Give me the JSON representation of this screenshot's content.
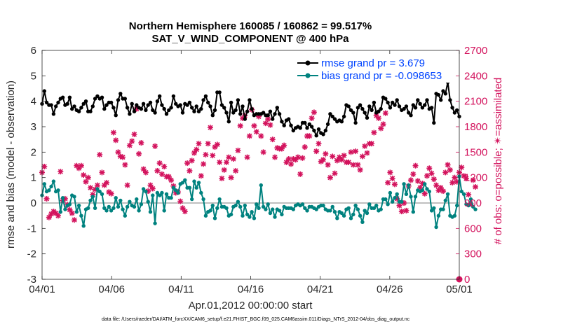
{
  "chart_data": {
    "type": "line",
    "title": "Northern Hemisphere 160085 / 160862 = 99.517%",
    "subtitle": "SAT_V_WIND_COMPONENT @ 400 hPa",
    "xlabel": "Apr.01,2012 00:00:00 start",
    "ylabel": "rmse and bias (model - observation)",
    "y2label": "# of obs: o=possible; ✴=assimilated",
    "footnote": "data file: /Users/raeder/DAI/ATM_forcXX/CAM6_setup/f.e21.FHIST_BGC.f09_025.CAM6assim.011/Diags_NTrS_2012-04/obs_diag_output.nc",
    "xlim": [
      0,
      30
    ],
    "ylim": [
      -3,
      6
    ],
    "y2lim": [
      0,
      2700
    ],
    "x_ticks": [
      0,
      5,
      10,
      15,
      20,
      25,
      30
    ],
    "x_tick_labels": [
      "04/01",
      "04/06",
      "04/11",
      "04/16",
      "04/21",
      "04/26",
      "05/01"
    ],
    "y_ticks": [
      -3,
      -2,
      -1,
      0,
      1,
      2,
      3,
      4,
      5,
      6
    ],
    "y2_ticks": [
      0,
      300,
      600,
      900,
      1200,
      1500,
      1800,
      2100,
      2400,
      2700
    ],
    "colors": {
      "rmse": "#000000",
      "bias": "#00827f",
      "obs": "#d3135d",
      "zero_line": "#bfbfbf",
      "legend_text": "#0044ff"
    },
    "legend": [
      {
        "name": "rmse grand pr = 3.679",
        "series": "rmse"
      },
      {
        "name": "bias grand pr = -0.098653",
        "series": "bias"
      }
    ],
    "legend_location": "top-right",
    "series": [
      {
        "name": "rmse",
        "values": [
          3.9,
          4.4,
          3.95,
          3.85,
          3.85,
          3.5,
          3.8,
          3.95,
          4.1,
          4.15,
          3.85,
          3.9,
          4.15,
          3.7,
          3.8,
          3.65,
          3.6,
          3.75,
          3.9,
          4.0,
          3.6,
          3.6,
          3.8,
          4.1,
          4.2,
          4.1,
          4.15,
          3.7,
          3.85,
          3.95,
          3.95,
          3.75,
          3.45,
          4.05,
          4.3,
          4.1,
          4.1,
          3.75,
          3.5,
          3.9,
          3.6,
          3.85,
          3.75,
          3.7,
          3.9,
          3.65,
          3.85,
          3.95,
          3.65,
          3.55,
          4.0,
          4.2,
          3.85,
          3.7,
          3.5,
          3.65,
          3.75,
          4.2,
          3.9,
          3.8,
          3.85,
          3.55,
          3.9,
          3.85,
          3.95,
          3.75,
          3.6,
          3.8,
          3.6,
          3.7,
          4.05,
          4.2,
          3.95,
          3.8,
          3.45,
          3.65,
          4.35,
          4.35,
          3.85,
          3.75,
          3.55,
          3.2,
          3.95,
          3.55,
          3.65,
          4.05,
          3.5,
          3.8,
          3.3,
          3.6,
          4.05,
          3.7,
          3.45,
          3.5,
          3.5,
          3.5,
          3.55,
          3.45,
          3.45,
          3.6,
          3.3,
          3.5,
          3.75,
          3.5,
          3.2,
          3.05,
          3.25,
          3.3,
          3.05,
          2.85,
          2.95,
          3.0,
          2.95,
          3.15,
          3.15,
          2.95,
          3.1,
          3.0,
          2.85,
          2.65,
          2.9,
          2.75,
          2.7,
          2.85,
          3.1,
          3.5,
          3.4,
          3.3,
          3.2,
          3.25,
          3.2,
          3.4,
          3.85,
          3.8,
          3.65,
          3.55,
          3.15,
          3.75,
          3.85,
          3.7,
          3.55,
          3.35,
          3.8,
          3.65,
          3.95,
          3.55,
          3.6,
          3.7,
          4.15,
          4.1,
          3.95,
          3.75,
          3.95,
          3.85,
          4.05,
          3.8,
          3.65,
          3.7,
          3.8,
          3.55,
          3.45,
          3.85,
          3.75,
          4.05,
          3.9,
          3.75,
          3.85,
          4.05,
          3.7,
          3.75,
          3.15,
          4.3,
          4.25,
          4.05,
          4.4,
          4.3,
          4.75,
          4.05,
          3.75,
          3.55,
          3.65,
          3.4
        ]
      },
      {
        "name": "bias",
        "values": [
          0.3,
          0.75,
          0.45,
          0.5,
          0.65,
          0.85,
          0.45,
          0.5,
          -0.35,
          0.2,
          -0.25,
          -0.1,
          -0.05,
          0.3,
          0.25,
          -0.35,
          -0.1,
          -0.5,
          -0.9,
          -0.25,
          -0.2,
          0.1,
          0.25,
          -0.2,
          0.55,
          0.45,
          0.35,
          -0.2,
          -0.3,
          -0.15,
          -0.3,
          -0.2,
          0.2,
          -0.15,
          0.1,
          -0.25,
          -0.5,
          -0.15,
          0.05,
          -0.1,
          -0.15,
          0.15,
          -0.3,
          -0.05,
          0.55,
          0.45,
          0.05,
          -0.35,
          0.3,
          -0.8,
          0.4,
          0.3,
          0.4,
          -0.3,
          0.35,
          0.2,
          0.2,
          0.6,
          0.5,
          0.4,
          0.75,
          0.8,
          0.9,
          0.6,
          0.6,
          0.15,
          0.85,
          0.6,
          0.8,
          0.4,
          0.15,
          -0.5,
          -0.35,
          -0.3,
          -0.1,
          -0.6,
          -0.2,
          0.15,
          -0.15,
          -0.15,
          -0.2,
          -0.5,
          -0.45,
          -0.15,
          -0.1,
          0.05,
          -0.15,
          -0.5,
          -0.1,
          -0.45,
          -0.55,
          -0.35,
          -0.6,
          -0.05,
          -0.2,
          0.7,
          -0.15,
          -0.25,
          -0.05,
          -0.4,
          -0.25,
          -0.55,
          -0.25,
          -0.3,
          -0.45,
          -0.15,
          -0.2,
          -0.2,
          -0.2,
          -0.25,
          -0.1,
          -0.05,
          -0.1,
          -0.05,
          -0.2,
          -0.3,
          -0.15,
          -0.15,
          -0.2,
          -0.25,
          -0.15,
          -0.1,
          -0.1,
          -0.25,
          -0.3,
          -0.3,
          -0.15,
          -0.35,
          -0.6,
          -0.35,
          -0.4,
          -0.5,
          -0.25,
          -0.2,
          -0.6,
          -0.45,
          -0.1,
          -0.25,
          -0.5,
          -0.75,
          -0.3,
          -0.4,
          -0.05,
          -0.2,
          -0.2,
          -0.1,
          -0.3,
          -0.25,
          0.15,
          0.15,
          -0.05,
          0.4,
          0.05,
          0.2,
          0.35,
          0.05,
          0.05,
          0.75,
          0.35,
          0.7,
          0.25,
          -0.35,
          0.25,
          0.5,
          0.45,
          0.5,
          0.75,
          0.55,
          0.45,
          -0.3,
          -0.2,
          -0.95,
          -0.5,
          -0.25,
          -0.25,
          0.1,
          0.35,
          -0.5,
          -0.55,
          -0.5,
          -0.1,
          1.05,
          0.45,
          0.35,
          -0.05,
          -0.1,
          0.15,
          -0.15,
          -0.25
        ]
      },
      {
        "name": "obs_assimilated",
        "values": [
          1260,
          1330,
          950,
          730,
          770,
          800,
          780,
          750,
          1270,
          930,
          950,
          880,
          820,
          780,
          700,
          1340,
          1310,
          1340,
          1230,
          1150,
          1200,
          1080,
          1000,
          1060,
          1110,
          1470,
          1260,
          1110,
          1140,
          1030,
          1010,
          1730,
          1640,
          1500,
          1450,
          1440,
          1350,
          1110,
          1580,
          1630,
          1710,
          2010,
          1480,
          1610,
          1300,
          1260,
          1040,
          1110,
          1070,
          1570,
          1280,
          1370,
          1240,
          1330,
          1210,
          1210,
          1170,
          1100,
          1020,
          1030,
          920,
          840,
          800,
          1370,
          1280,
          1400,
          1490,
          1530,
          1600,
          1220,
          1360,
          1470,
          1600,
          1790,
          1460,
          1560,
          1590,
          1380,
          1190,
          1290,
          1380,
          1440,
          1200,
          1420,
          1280,
          1520,
          1810,
          1900,
          1930,
          1440,
          1690,
          2000,
          1810,
          1740,
          1920,
          1690,
          1500,
          1840,
          1890,
          1820,
          1650,
          1440,
          1550,
          1540,
          1540,
          1580,
          1380,
          1420,
          1360,
          1420,
          1410,
          1440,
          1240,
          1430,
          1560,
          1690,
          1690,
          1900,
          1970,
          1510,
          1600,
          1390,
          1410,
          1480,
          1350,
          1200,
          1450,
          1250,
          1400,
          1440,
          1410,
          1460,
          1380,
          1380,
          1500,
          1350,
          1510,
          1350,
          1290,
          1450,
          1570,
          1490,
          1600,
          1600,
          1730,
          1930,
          1900,
          1780,
          1830,
          1960,
          1140,
          1260,
          1190,
          1120,
          950,
          870,
          800,
          900,
          810,
          1100,
          1170,
          1240,
          1340,
          1160,
          1080,
          1130,
          1010,
          1220,
          1310,
          1250,
          1180,
          1110,
          1050,
          1080,
          1040,
          1260,
          1350,
          1290,
          1140,
          1200,
          1150,
          1260,
          1320,
          1220,
          1190,
          1000,
          890,
          1170,
          1090
        ]
      }
    ]
  }
}
